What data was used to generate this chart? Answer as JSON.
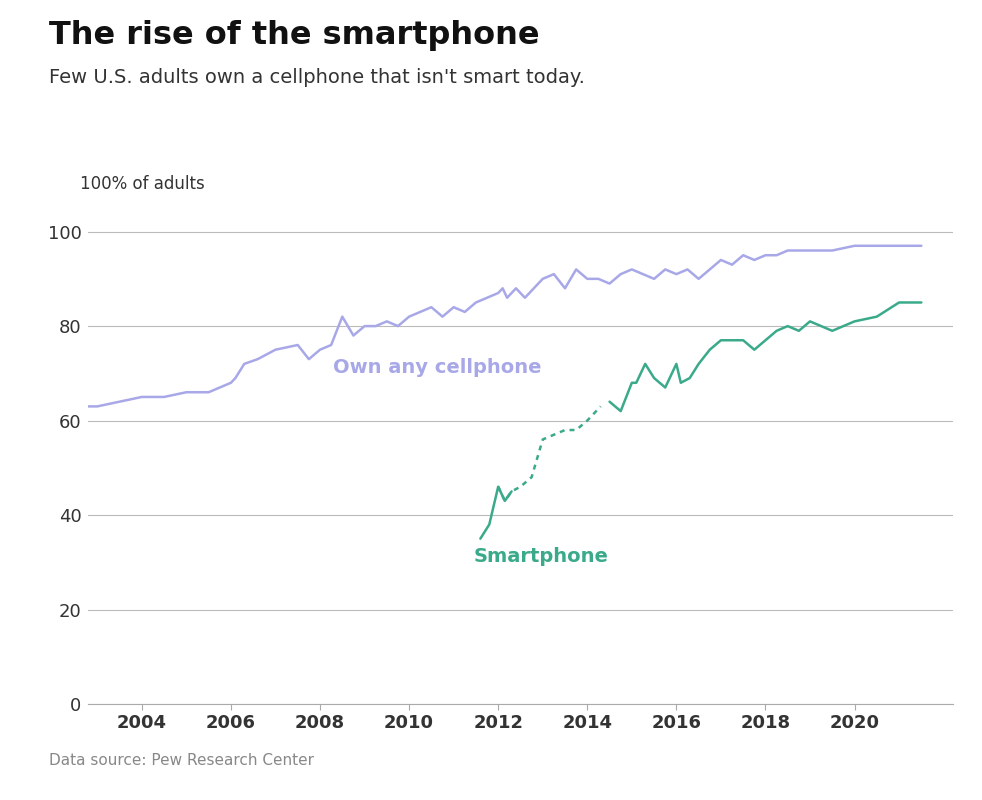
{
  "title": "The rise of the smartphone",
  "subtitle": "Few U.S. adults own a cellphone that isn't smart today.",
  "ylabel": "100% of adults",
  "source": "Data source: Pew Research Center",
  "background_color": "#ffffff",
  "cellphone_color": "#a8a8e8",
  "smartphone_color": "#3aaa8a",
  "label_cellphone": "Own any cellphone",
  "label_smartphone": "Smartphone",
  "ylim": [
    0,
    105
  ],
  "xlim": [
    2002.8,
    2022.2
  ],
  "yticks": [
    0,
    20,
    40,
    60,
    80,
    100
  ],
  "xticks": [
    2004,
    2006,
    2008,
    2010,
    2012,
    2014,
    2016,
    2018,
    2020
  ],
  "cellphone_x": [
    2002.75,
    2003.0,
    2003.5,
    2004.0,
    2004.5,
    2005.0,
    2005.5,
    2006.0,
    2006.1,
    2006.3,
    2006.6,
    2007.0,
    2007.5,
    2007.75,
    2008.0,
    2008.25,
    2008.5,
    2008.75,
    2009.0,
    2009.25,
    2009.5,
    2009.75,
    2010.0,
    2010.25,
    2010.5,
    2010.75,
    2011.0,
    2011.25,
    2011.5,
    2011.75,
    2012.0,
    2012.1,
    2012.2,
    2012.4,
    2012.6,
    2012.8,
    2013.0,
    2013.25,
    2013.5,
    2013.75,
    2014.0,
    2014.25,
    2014.5,
    2014.75,
    2015.0,
    2015.25,
    2015.5,
    2015.75,
    2016.0,
    2016.25,
    2016.5,
    2016.75,
    2017.0,
    2017.25,
    2017.5,
    2017.75,
    2018.0,
    2018.25,
    2018.5,
    2018.75,
    2019.0,
    2019.5,
    2020.0,
    2020.5,
    2021.0,
    2021.5
  ],
  "cellphone_y": [
    63,
    63,
    64,
    65,
    65,
    66,
    66,
    68,
    69,
    72,
    73,
    75,
    76,
    73,
    75,
    76,
    82,
    78,
    80,
    80,
    81,
    80,
    82,
    83,
    84,
    82,
    84,
    83,
    85,
    86,
    87,
    88,
    86,
    88,
    86,
    88,
    90,
    91,
    88,
    92,
    90,
    90,
    89,
    91,
    92,
    91,
    90,
    92,
    91,
    92,
    90,
    92,
    94,
    93,
    95,
    94,
    95,
    95,
    96,
    96,
    96,
    96,
    97,
    97,
    97,
    97
  ],
  "smartphone_pre_x": [
    2011.6,
    2011.8,
    2012.0,
    2012.15,
    2012.3
  ],
  "smartphone_pre_y": [
    35,
    38,
    46,
    43,
    45
  ],
  "smartphone_dotted_x": [
    2012.0,
    2012.15,
    2012.3,
    2012.5,
    2012.75,
    2013.0,
    2013.25,
    2013.5,
    2013.75,
    2014.0,
    2014.3
  ],
  "smartphone_dotted_y": [
    46,
    43,
    45,
    46,
    48,
    56,
    57,
    58,
    58,
    60,
    63
  ],
  "smartphone_post_x": [
    2014.5,
    2014.75,
    2015.0,
    2015.1,
    2015.3,
    2015.5,
    2015.75,
    2016.0,
    2016.1,
    2016.3,
    2016.5,
    2016.75,
    2017.0,
    2017.25,
    2017.5,
    2017.75,
    2018.0,
    2018.25,
    2018.5,
    2018.75,
    2019.0,
    2019.5,
    2020.0,
    2020.5,
    2021.0,
    2021.5
  ],
  "smartphone_post_y": [
    64,
    62,
    68,
    68,
    72,
    69,
    67,
    72,
    68,
    69,
    72,
    75,
    77,
    77,
    77,
    75,
    77,
    79,
    80,
    79,
    81,
    79,
    81,
    82,
    85,
    85
  ]
}
